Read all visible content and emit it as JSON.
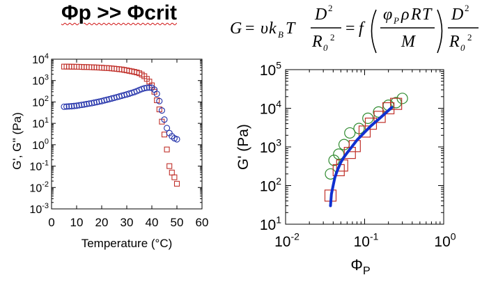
{
  "header": {
    "title": "Φp >> Φcrit"
  },
  "equation": {
    "lhs": "G",
    "eq": "=",
    "nu": "υ",
    "k": "k",
    "k_sub": "B",
    "T": "T",
    "D": "D",
    "sup2": "2",
    "R": "R",
    "R_sub": "0",
    "f": "f",
    "phi": "φ",
    "phi_sub": "P",
    "rho": "ρ",
    "R_gas": "R",
    "M": "M"
  },
  "chart_data": [
    {
      "type": "scatter",
      "xlabel": "Temperature (°C)",
      "ylabel": "G', G'' (Pa)",
      "xlim": [
        0,
        60
      ],
      "ylim_log10": [
        -3,
        4
      ],
      "xscale": "linear",
      "yscale": "log",
      "xticks": [
        0,
        10,
        20,
        30,
        40,
        50,
        60
      ],
      "yticks": [
        "10^-3",
        "10^-2",
        "10^-1",
        "10^0",
        "10^1",
        "10^2",
        "10^3",
        "10^4"
      ],
      "grid": false,
      "legend": "none",
      "series": [
        {
          "marker": "square",
          "color": "#c0302a",
          "x": [
            5,
            6,
            7,
            8,
            9,
            10,
            11,
            12,
            13,
            14,
            15,
            16,
            17,
            18,
            19,
            20,
            21,
            22,
            23,
            24,
            25,
            26,
            27,
            28,
            29,
            30,
            31,
            32,
            33,
            34,
            35,
            36,
            37,
            38,
            39,
            40,
            41,
            42,
            43,
            44,
            45,
            46,
            47,
            48,
            49,
            50
          ],
          "y": [
            4500,
            4500,
            4500,
            4450,
            4450,
            4400,
            4400,
            4350,
            4300,
            4300,
            4250,
            4200,
            4150,
            4100,
            4050,
            4000,
            3900,
            3850,
            3800,
            3700,
            3600,
            3500,
            3400,
            3300,
            3150,
            3000,
            2850,
            2700,
            2550,
            2400,
            2200,
            1900,
            1600,
            1200,
            900,
            600,
            300,
            120,
            45,
            12,
            3,
            0.6,
            0.1,
            0.05,
            0.03,
            0.015
          ]
        },
        {
          "marker": "circle",
          "color": "#1f2ea8",
          "x": [
            5,
            6,
            7,
            8,
            9,
            10,
            11,
            12,
            13,
            14,
            15,
            16,
            17,
            18,
            19,
            20,
            21,
            22,
            23,
            24,
            25,
            26,
            27,
            28,
            29,
            30,
            31,
            32,
            33,
            34,
            35,
            36,
            37,
            38,
            39,
            40,
            41,
            42,
            43,
            44,
            45,
            46,
            47,
            48,
            49,
            50
          ],
          "y": [
            60,
            61,
            62,
            63,
            65,
            67,
            70,
            73,
            76,
            80,
            84,
            88,
            93,
            98,
            104,
            110,
            118,
            126,
            135,
            145,
            155,
            168,
            180,
            195,
            210,
            225,
            245,
            265,
            290,
            320,
            360,
            400,
            440,
            460,
            470,
            460,
            380,
            240,
            110,
            40,
            15,
            6,
            3.5,
            2.5,
            2.0,
            1.8
          ]
        }
      ]
    },
    {
      "type": "scatter",
      "xlabel": "Φ",
      "xlabel_sub": "P",
      "ylabel": "G' (Pa)",
      "xscale": "log",
      "yscale": "log",
      "xlim_log10": [
        -2,
        0
      ],
      "ylim_log10": [
        1,
        5
      ],
      "xticks": [
        "10^-2",
        "10^-1",
        "10^0"
      ],
      "yticks": [
        "10^1",
        "10^2",
        "10^3",
        "10^4",
        "10^5"
      ],
      "grid": false,
      "legend": "none",
      "series": [
        {
          "marker": "circle-large",
          "color": "#2e8a2e",
          "x": [
            0.037,
            0.041,
            0.047,
            0.055,
            0.065,
            0.085,
            0.11,
            0.15,
            0.2,
            0.25,
            0.3
          ],
          "y": [
            200,
            450,
            650,
            1150,
            2300,
            3000,
            5500,
            8000,
            12000,
            14000,
            18000
          ]
        },
        {
          "marker": "square-large",
          "color": "#c0302a",
          "x": [
            0.037,
            0.047,
            0.052,
            0.065,
            0.075,
            0.1,
            0.12,
            0.155,
            0.2,
            0.25
          ],
          "y": [
            55,
            250,
            330,
            700,
            1050,
            2500,
            4000,
            6000,
            10000,
            13000
          ]
        },
        {
          "marker": "line",
          "color": "#1030d0",
          "x": [
            0.037,
            0.038,
            0.04,
            0.042,
            0.045,
            0.05,
            0.055,
            0.06,
            0.07,
            0.08,
            0.1,
            0.12,
            0.15,
            0.18,
            0.22
          ],
          "y": [
            30,
            60,
            100,
            160,
            240,
            400,
            550,
            700,
            1050,
            1500,
            2400,
            3500,
            5200,
            7200,
            10500
          ]
        }
      ]
    }
  ]
}
